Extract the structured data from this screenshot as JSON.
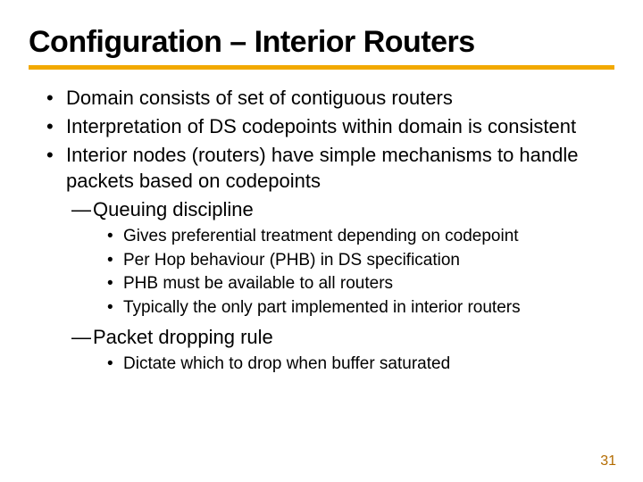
{
  "title": "Configuration – Interior Routers",
  "title_fontsize": 34,
  "title_color": "#000000",
  "underline_color": "#f2a900",
  "body_fontsize_lvl1": 22,
  "body_fontsize_lvl2": 22,
  "body_fontsize_lvl3": 19,
  "bullets": {
    "b1": "Domain consists of set of contiguous routers",
    "b2": "Interpretation of DS codepoints within domain is consistent",
    "b3": "Interior nodes (routers) have simple mechanisms to handle packets based on codepoints",
    "b3_s1": "Queuing discipline",
    "b3_s1_i1": "Gives preferential treatment depending on codepoint",
    "b3_s1_i2": "Per Hop behaviour (PHB) in DS specification",
    "b3_s1_i3": "PHB must be available to all routers",
    "b3_s1_i4": "Typically the only part implemented in interior routers",
    "b3_s2": "Packet dropping rule",
    "b3_s2_i1": "Dictate which to drop when buffer saturated"
  },
  "page_number": "31",
  "page_number_fontsize": 16,
  "page_number_color": "#b36b00"
}
